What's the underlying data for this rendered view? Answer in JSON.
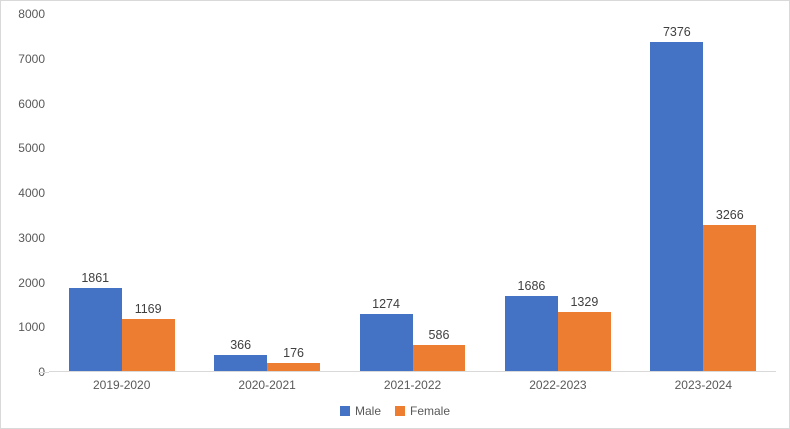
{
  "chart": {
    "background": "#FFFFFF",
    "border_color": "#D9D9D9",
    "axis_line_color": "#D9D9D9",
    "tick_label_color": "#595959",
    "data_label_color": "#404040"
  },
  "chart_data": {
    "type": "bar",
    "title": "",
    "xlabel": "",
    "ylabel": "",
    "categories": [
      "2019-2020",
      "2020-2021",
      "2021-2022",
      "2022-2023",
      "2023-2024"
    ],
    "series": [
      {
        "name": "Male",
        "color": "#4472C4",
        "values": [
          1861,
          366,
          1274,
          1686,
          7376
        ]
      },
      {
        "name": "Female",
        "color": "#ED7D31",
        "values": [
          1169,
          176,
          586,
          1329,
          3266
        ]
      }
    ],
    "ylim": [
      0,
      8000
    ],
    "ytick_step": 1000,
    "yticks": [
      "0",
      "1000",
      "2000",
      "3000",
      "4000",
      "5000",
      "6000",
      "7000",
      "8000"
    ],
    "grid": false,
    "data_labels": true,
    "legend_position": "bottom"
  }
}
